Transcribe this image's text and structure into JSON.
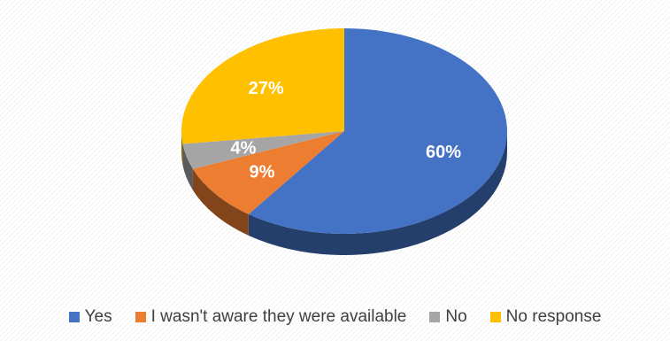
{
  "chart_data": {
    "type": "pie",
    "title": "",
    "categories": [
      "Yes",
      "I wasn't aware they were available",
      "No",
      "No response"
    ],
    "values": [
      60,
      9,
      4,
      27
    ],
    "labels": [
      "60%",
      "9%",
      "4%",
      "27%"
    ],
    "colors": [
      "#4472C4",
      "#ED7D31",
      "#A5A5A5",
      "#FFC000"
    ],
    "style": "3d",
    "legend_position": "bottom"
  }
}
